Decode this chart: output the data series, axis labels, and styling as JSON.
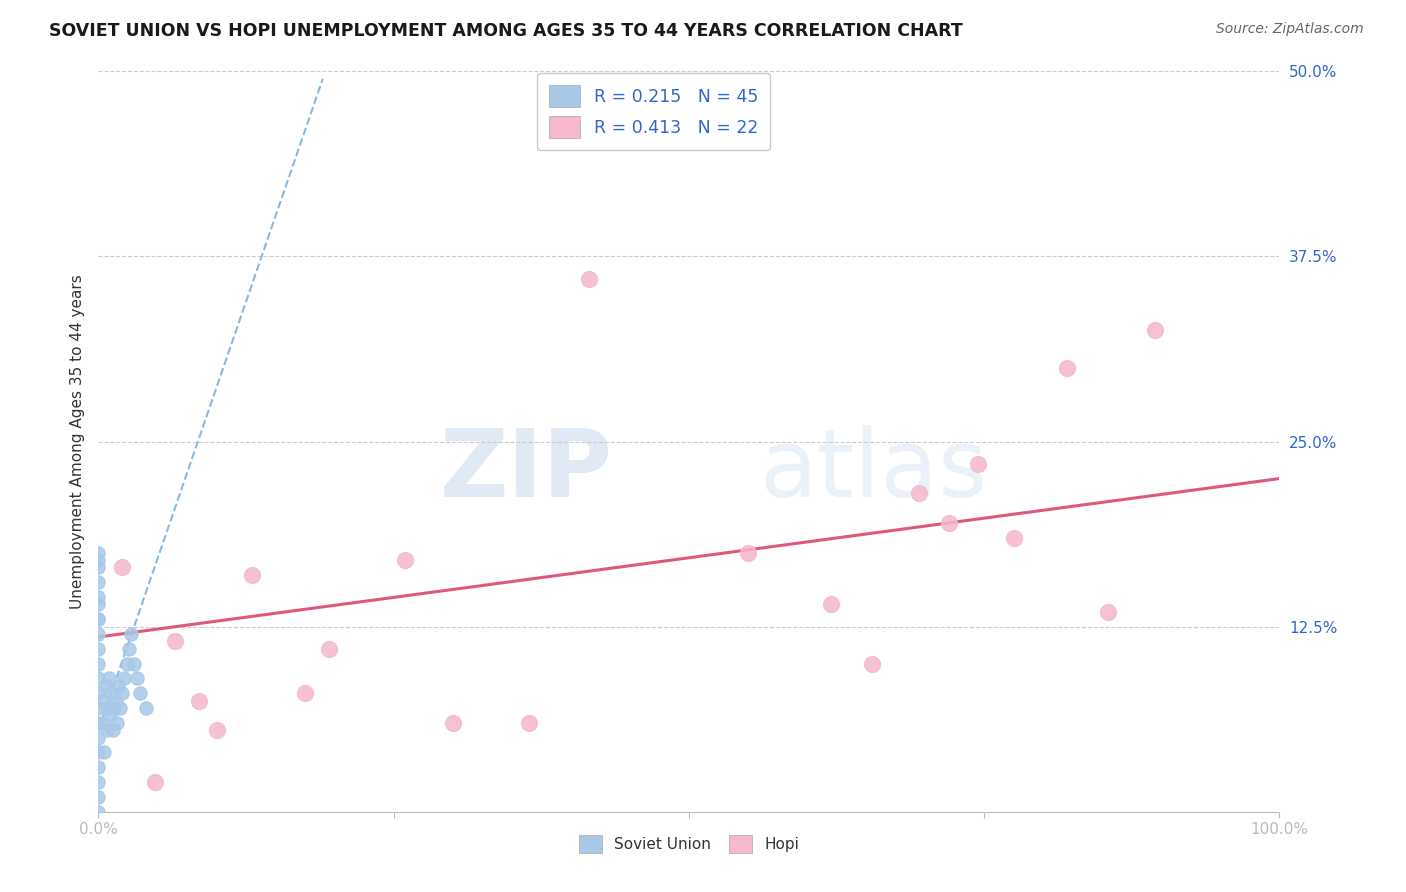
{
  "title": "SOVIET UNION VS HOPI UNEMPLOYMENT AMONG AGES 35 TO 44 YEARS CORRELATION CHART",
  "source": "Source: ZipAtlas.com",
  "ylabel": "Unemployment Among Ages 35 to 44 years",
  "xlim": [
    0.0,
    1.0
  ],
  "ylim": [
    0.0,
    0.5
  ],
  "xticks": [
    0.0,
    0.25,
    0.5,
    0.75,
    1.0
  ],
  "xticklabels": [
    "0.0%",
    "",
    "",
    "",
    "100.0%"
  ],
  "yticks": [
    0.0,
    0.125,
    0.25,
    0.375,
    0.5
  ],
  "yticklabels": [
    "",
    "12.5%",
    "25.0%",
    "37.5%",
    "50.0%"
  ],
  "watermark_zip": "ZIP",
  "watermark_atlas": "atlas",
  "legend_soviet_R": "R = 0.215",
  "legend_soviet_N": "N = 45",
  "legend_hopi_R": "R = 0.413",
  "legend_hopi_N": "N = 22",
  "soviet_color": "#a8c8e8",
  "hopi_color": "#f5b8cc",
  "trendline_soviet_color": "#88b8e0",
  "trendline_hopi_color": "#e05878",
  "background_color": "#ffffff",
  "grid_color": "#cccccc",
  "title_color": "#1a1a1a",
  "tick_color": "#3366cc",
  "ylabel_color": "#333333",
  "soviet_scatter_x": [
    0.0,
    0.0,
    0.0,
    0.0,
    0.0,
    0.0,
    0.0,
    0.0,
    0.0,
    0.0,
    0.0,
    0.0,
    0.0,
    0.0,
    0.0,
    0.0,
    0.0,
    0.0,
    0.0,
    0.0,
    0.0,
    0.003,
    0.004,
    0.005,
    0.006,
    0.007,
    0.008,
    0.009,
    0.01,
    0.011,
    0.012,
    0.013,
    0.015,
    0.016,
    0.017,
    0.018,
    0.02,
    0.022,
    0.024,
    0.026,
    0.028,
    0.03,
    0.033,
    0.035,
    0.04
  ],
  "soviet_scatter_y": [
    0.0,
    0.01,
    0.02,
    0.03,
    0.04,
    0.05,
    0.06,
    0.07,
    0.08,
    0.09,
    0.1,
    0.11,
    0.12,
    0.13,
    0.14,
    0.155,
    0.165,
    0.17,
    0.175,
    0.13,
    0.145,
    0.06,
    0.075,
    0.04,
    0.085,
    0.055,
    0.07,
    0.09,
    0.065,
    0.08,
    0.055,
    0.07,
    0.075,
    0.06,
    0.085,
    0.07,
    0.08,
    0.09,
    0.1,
    0.11,
    0.12,
    0.1,
    0.09,
    0.08,
    0.07
  ],
  "hopi_scatter_x": [
    0.02,
    0.048,
    0.065,
    0.085,
    0.1,
    0.13,
    0.175,
    0.195,
    0.26,
    0.3,
    0.365,
    0.415,
    0.55,
    0.62,
    0.655,
    0.695,
    0.72,
    0.745,
    0.775,
    0.82,
    0.855,
    0.895
  ],
  "hopi_scatter_y": [
    0.165,
    0.02,
    0.115,
    0.075,
    0.055,
    0.16,
    0.08,
    0.11,
    0.17,
    0.06,
    0.06,
    0.36,
    0.175,
    0.14,
    0.1,
    0.215,
    0.195,
    0.235,
    0.185,
    0.3,
    0.135,
    0.325
  ],
  "soviet_trend_x": [
    0.0,
    0.19
  ],
  "soviet_trend_y": [
    0.055,
    0.495
  ],
  "hopi_trend_x": [
    0.0,
    1.0
  ],
  "hopi_trend_y": [
    0.118,
    0.225
  ]
}
